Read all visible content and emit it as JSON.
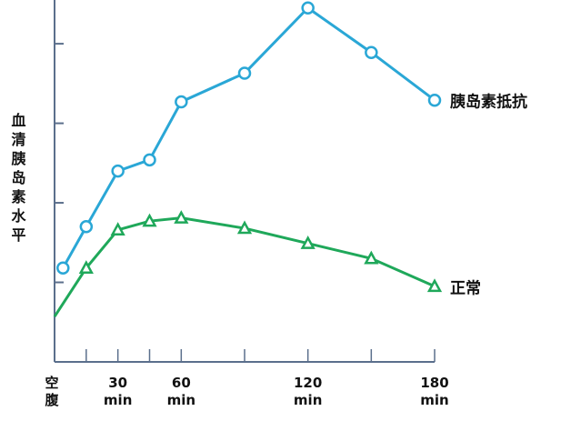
{
  "chart_data": {
    "type": "line",
    "y_label": "血清胰岛素水平",
    "xlim": [
      0,
      180
    ],
    "ylim": [
      0,
      4.55
    ],
    "xticks": [
      {
        "value": 0,
        "label": "空腹"
      },
      {
        "value": 30,
        "label": "30 min"
      },
      {
        "value": 60,
        "label": "60 min"
      },
      {
        "value": 120,
        "label": "120 min"
      },
      {
        "value": 180,
        "label": "180 min"
      }
    ],
    "x_minor_ticks": [
      15,
      45,
      90,
      150
    ],
    "yticks": [
      1,
      2,
      3,
      4
    ],
    "series": [
      {
        "name": "胰岛素抵抗",
        "color": "#2aa7d6",
        "marker": "circle",
        "x": [
          4,
          15,
          30,
          45,
          60,
          90,
          120,
          150,
          180
        ],
        "values": [
          1.18,
          1.7,
          2.4,
          2.54,
          3.27,
          3.63,
          4.45,
          3.89,
          3.29
        ]
      },
      {
        "name": "正常",
        "color": "#1fa85a",
        "marker": "triangle",
        "x": [
          0,
          15,
          30,
          45,
          60,
          90,
          120,
          150,
          180
        ],
        "values": [
          0.57,
          1.18,
          1.66,
          1.77,
          1.81,
          1.68,
          1.49,
          1.3,
          0.95
        ]
      }
    ]
  }
}
